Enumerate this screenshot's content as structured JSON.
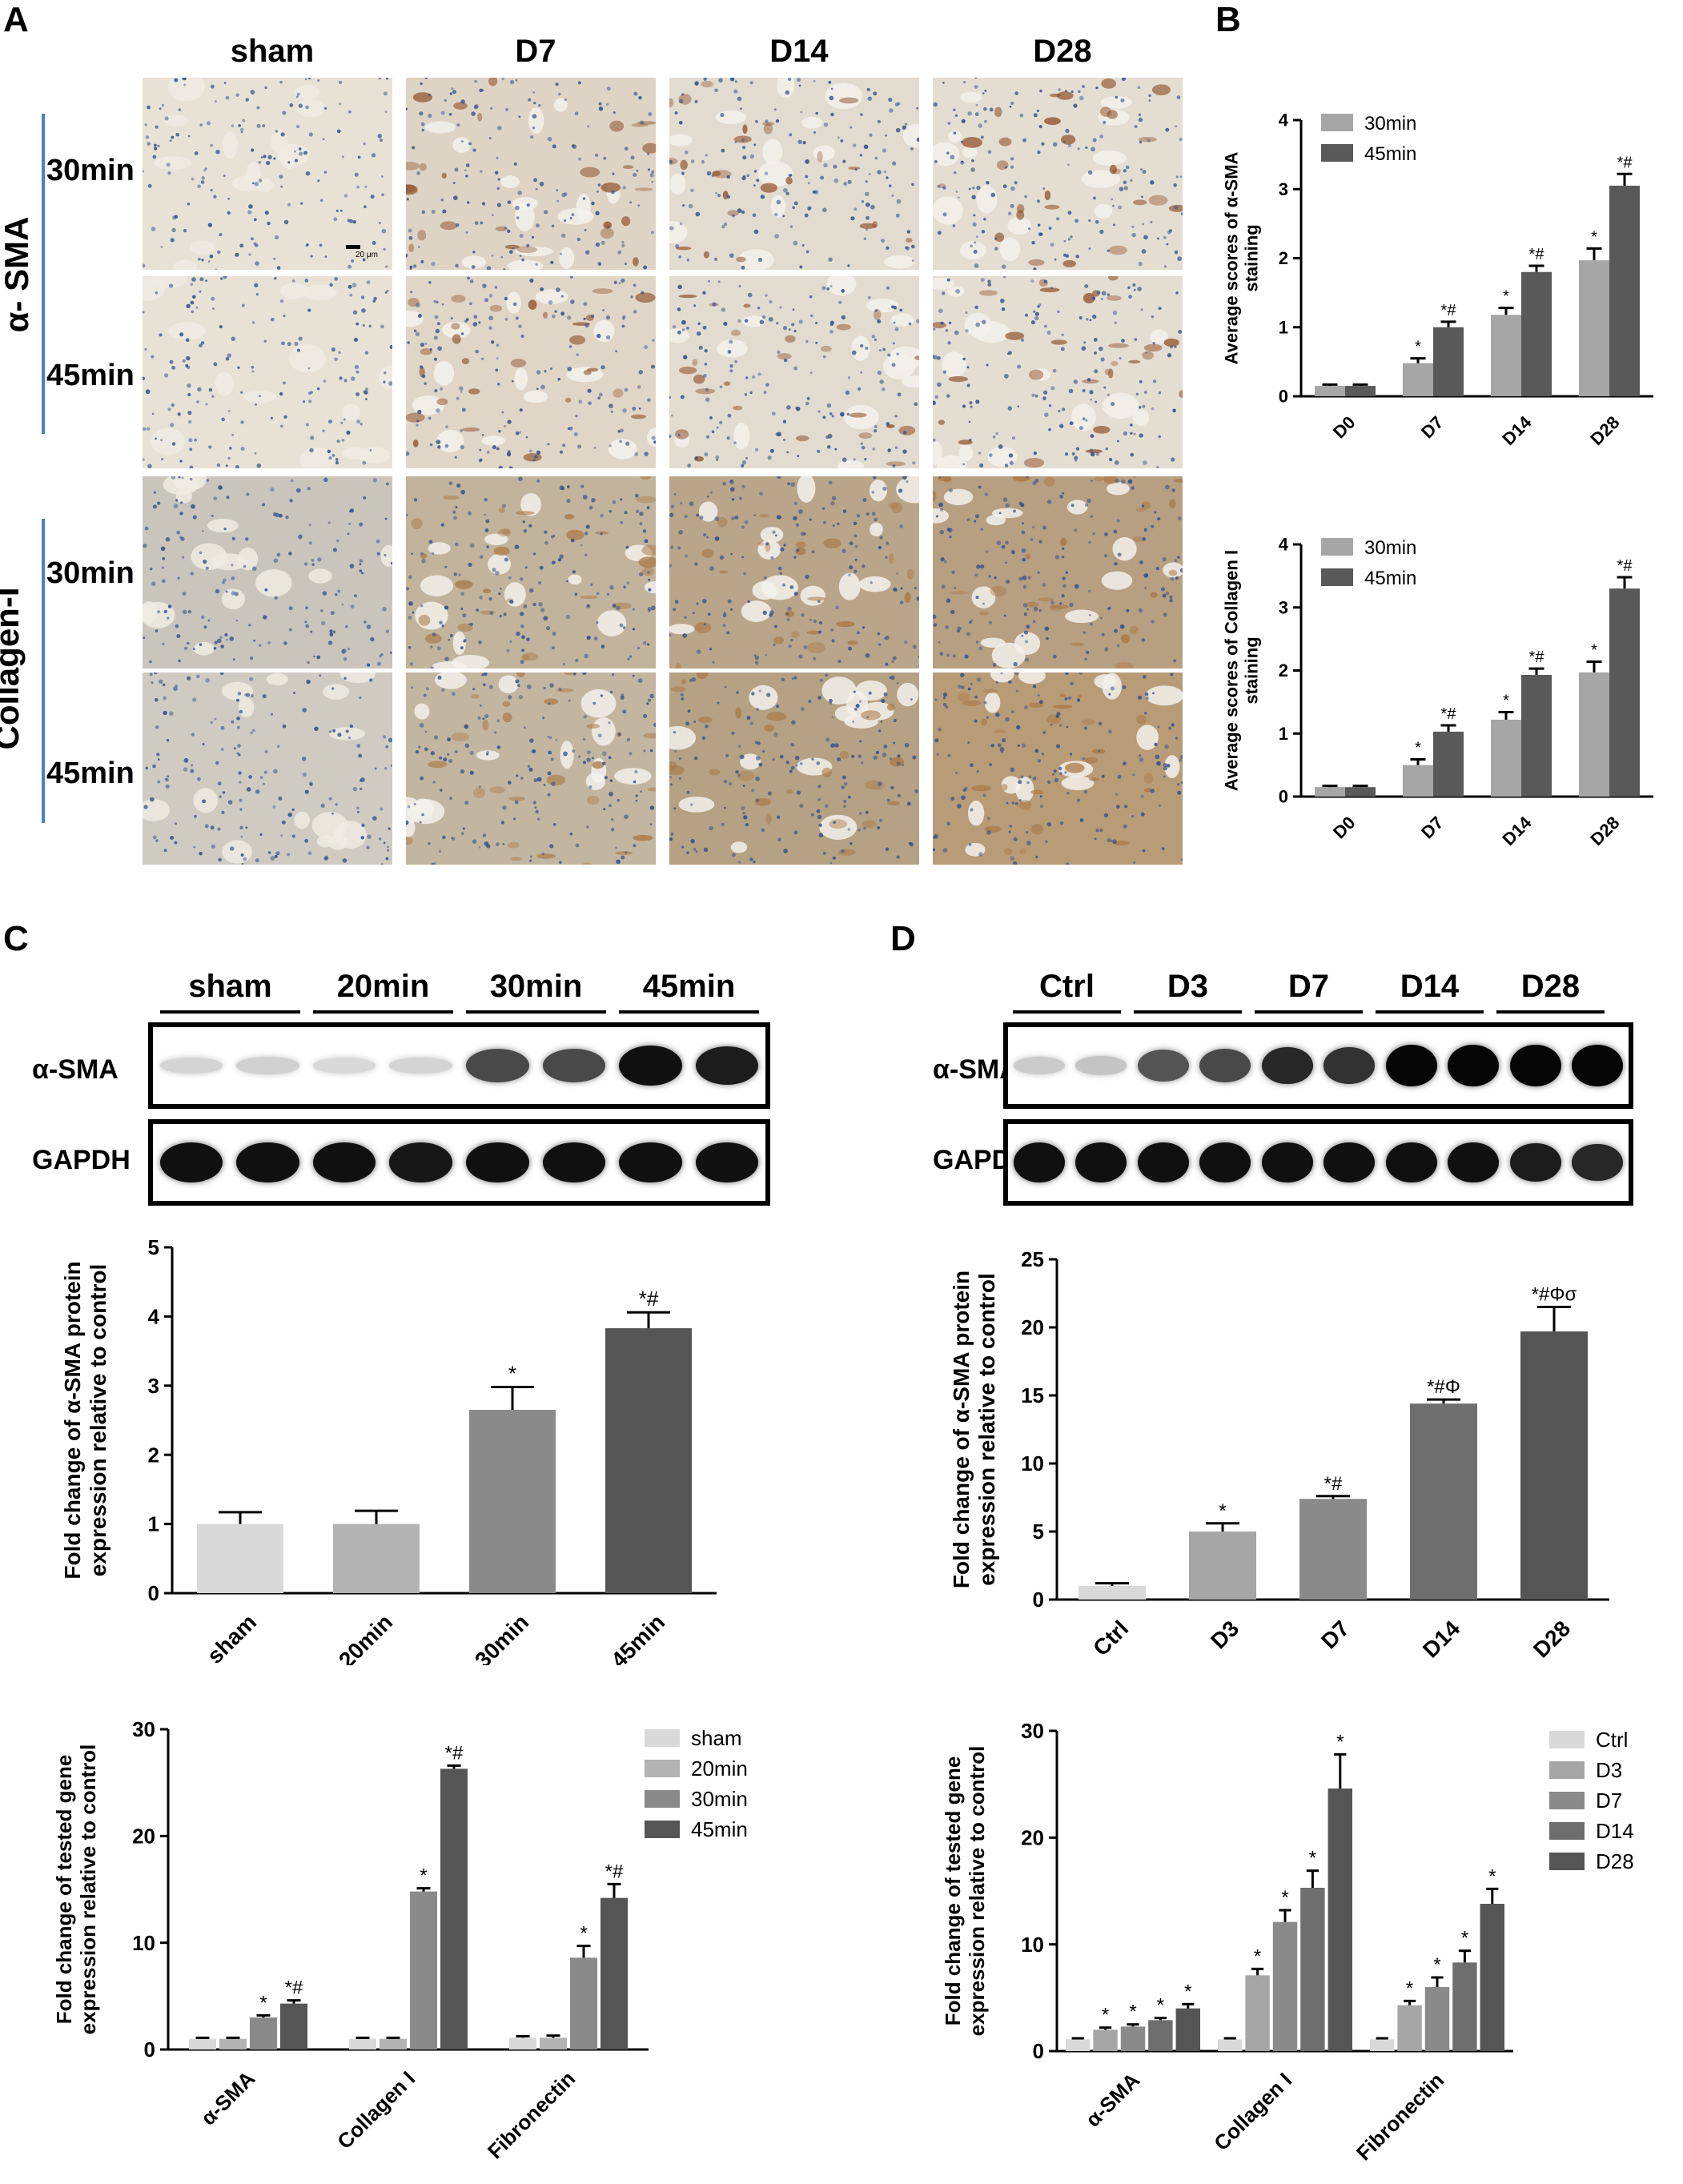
{
  "panelA": {
    "letter": "A",
    "columns": [
      "sham",
      "D7",
      "D14",
      "D28"
    ],
    "group_labels": {
      "sma": "α- SMA",
      "col": "Collagen-I"
    },
    "row_labels": [
      "30min",
      "45min",
      "30min",
      "45min"
    ],
    "scale_bar": "20 μm"
  },
  "panelB": {
    "letter": "B"
  },
  "panelC": {
    "letter": "C",
    "lane_groups": [
      "sham",
      "20min",
      "30min",
      "45min"
    ],
    "rows": [
      "α-SMA",
      "GAPDH"
    ],
    "sma_band_intensity": [
      0.08,
      0.1,
      0.06,
      0.08,
      0.7,
      0.7,
      0.95,
      0.9
    ],
    "gapdh_band_intensity": [
      0.95,
      0.95,
      0.95,
      0.92,
      0.95,
      0.95,
      0.95,
      0.95
    ]
  },
  "panelD": {
    "letter": "D",
    "lane_groups": [
      "Ctrl",
      "D3",
      "D7",
      "D14",
      "D28"
    ],
    "rows": [
      "α-SMA",
      "GAPDH"
    ],
    "sma_band_intensity": [
      0.12,
      0.15,
      0.65,
      0.7,
      0.85,
      0.8,
      1.0,
      1.0,
      1.0,
      1.0
    ],
    "gapdh_band_intensity": [
      0.95,
      0.95,
      0.95,
      0.95,
      0.95,
      0.95,
      0.95,
      0.95,
      0.9,
      0.85
    ]
  },
  "chart_data": [
    {
      "id": "B1",
      "type": "bar",
      "ylabel": "Average scores of α-SMA staining",
      "categories": [
        "D0",
        "D7",
        "D14",
        "D28"
      ],
      "ylim": [
        0,
        4
      ],
      "yticks": [
        0,
        1,
        2,
        3,
        4
      ],
      "series": [
        {
          "name": "30min",
          "color": "#a6a6a6",
          "values": [
            0.15,
            0.48,
            1.18,
            1.97
          ],
          "errors": [
            0.02,
            0.07,
            0.1,
            0.17
          ],
          "annotations": [
            "",
            "*",
            "*",
            "*"
          ]
        },
        {
          "name": "45min",
          "color": "#595959",
          "values": [
            0.15,
            1.0,
            1.8,
            3.05
          ],
          "errors": [
            0.02,
            0.08,
            0.09,
            0.17
          ],
          "annotations": [
            "",
            "*#",
            "*#",
            "*#"
          ]
        }
      ],
      "legend": "top-left",
      "xtick_rotation": -45
    },
    {
      "id": "B2",
      "type": "bar",
      "ylabel": "Average scores of Collagen I staining",
      "categories": [
        "D0",
        "D7",
        "D14",
        "D28"
      ],
      "ylim": [
        0,
        4
      ],
      "yticks": [
        0,
        1,
        2,
        3,
        4
      ],
      "series": [
        {
          "name": "30min",
          "color": "#a6a6a6",
          "values": [
            0.15,
            0.5,
            1.22,
            1.97
          ],
          "errors": [
            0.02,
            0.09,
            0.12,
            0.17
          ],
          "annotations": [
            "",
            "*",
            "*",
            "*"
          ]
        },
        {
          "name": "45min",
          "color": "#595959",
          "values": [
            0.15,
            1.03,
            1.93,
            3.3
          ],
          "errors": [
            0.02,
            0.1,
            0.1,
            0.18
          ],
          "annotations": [
            "",
            "*#",
            "*#",
            "*#"
          ]
        }
      ],
      "legend": "top-left",
      "xtick_rotation": -45
    },
    {
      "id": "C1",
      "type": "bar",
      "ylabel": "Fold change of α-SMA protein expression relative to control",
      "categories": [
        "sham",
        "20min",
        "30min",
        "45min"
      ],
      "ylim": [
        0,
        5
      ],
      "yticks": [
        0,
        1,
        2,
        3,
        4,
        5
      ],
      "values": [
        1.0,
        1.0,
        2.65,
        3.83
      ],
      "errors": [
        0.17,
        0.19,
        0.33,
        0.23
      ],
      "annotations": [
        "",
        "",
        "*",
        "*#"
      ],
      "colors": [
        "#d9d9d9",
        "#b3b3b3",
        "#8a8a8a",
        "#555555"
      ],
      "xtick_rotation": -45
    },
    {
      "id": "C2",
      "type": "bar",
      "ylabel": "Fold change of tested gene expression relative to control",
      "categories": [
        "α-SMA",
        "Collagen I",
        "Fibronectin"
      ],
      "ylim": [
        0,
        30
      ],
      "yticks": [
        0,
        10,
        20,
        30
      ],
      "series": [
        {
          "name": "sham",
          "color": "#d9d9d9",
          "values": [
            1.0,
            1.0,
            1.1
          ],
          "errors": [
            0.1,
            0.1,
            0.15
          ],
          "annotations": [
            "",
            "",
            ""
          ]
        },
        {
          "name": "20min",
          "color": "#b3b3b3",
          "values": [
            1.0,
            1.0,
            1.1
          ],
          "errors": [
            0.1,
            0.1,
            0.2
          ],
          "annotations": [
            "",
            "",
            ""
          ]
        },
        {
          "name": "30min",
          "color": "#8a8a8a",
          "values": [
            3.0,
            14.8,
            8.6
          ],
          "errors": [
            0.2,
            0.3,
            1.1
          ],
          "annotations": [
            "*",
            "*",
            "*"
          ]
        },
        {
          "name": "45min",
          "color": "#555555",
          "values": [
            4.3,
            26.3,
            14.2
          ],
          "errors": [
            0.3,
            0.3,
            1.3
          ],
          "annotations": [
            "*#",
            "*#",
            "*#"
          ]
        }
      ],
      "legend": "right",
      "xtick_rotation": -45
    },
    {
      "id": "D1",
      "type": "bar",
      "ylabel": "Fold change of α-SMA protein expression relative to control",
      "categories": [
        "Ctrl",
        "D3",
        "D7",
        "D14",
        "D28"
      ],
      "ylim": [
        0,
        25
      ],
      "yticks": [
        0,
        5,
        10,
        15,
        20,
        25
      ],
      "values": [
        1.0,
        5.0,
        7.4,
        14.4,
        19.7
      ],
      "errors": [
        0.2,
        0.6,
        0.2,
        0.3,
        1.8
      ],
      "annotations": [
        "",
        "*",
        "*#",
        "*#Φ",
        "*#Φσ"
      ],
      "colors": [
        "#d9d9d9",
        "#a6a6a6",
        "#8a8a8a",
        "#6e6e6e",
        "#555555"
      ],
      "xtick_rotation": -45
    },
    {
      "id": "D2",
      "type": "bar",
      "ylabel": "Fold change of tested gene expression relative to control",
      "categories": [
        "α-SMA",
        "Collagen I",
        "Fibronectin"
      ],
      "ylim": [
        0,
        30
      ],
      "yticks": [
        0,
        10,
        20,
        30
      ],
      "series": [
        {
          "name": "Ctrl",
          "color": "#d9d9d9",
          "values": [
            1.1,
            1.1,
            1.1
          ],
          "errors": [
            0.1,
            0.1,
            0.1
          ],
          "annotations": [
            "",
            "",
            ""
          ]
        },
        {
          "name": "D3",
          "color": "#a6a6a6",
          "values": [
            2.0,
            7.1,
            4.3
          ],
          "errors": [
            0.2,
            0.6,
            0.4
          ],
          "annotations": [
            "*",
            "*",
            "*"
          ]
        },
        {
          "name": "D7",
          "color": "#8a8a8a",
          "values": [
            2.3,
            12.1,
            6.0
          ],
          "errors": [
            0.2,
            1.1,
            0.9
          ],
          "annotations": [
            "*",
            "*",
            "*"
          ]
        },
        {
          "name": "D14",
          "color": "#6e6e6e",
          "values": [
            2.9,
            15.3,
            8.3
          ],
          "errors": [
            0.2,
            1.6,
            1.1
          ],
          "annotations": [
            "*",
            "*",
            "*"
          ]
        },
        {
          "name": "D28",
          "color": "#555555",
          "values": [
            4.0,
            24.6,
            13.8
          ],
          "errors": [
            0.4,
            3.2,
            1.4
          ],
          "annotations": [
            "*",
            "*",
            "*"
          ]
        }
      ],
      "legend": "right",
      "xtick_rotation": -45
    }
  ]
}
